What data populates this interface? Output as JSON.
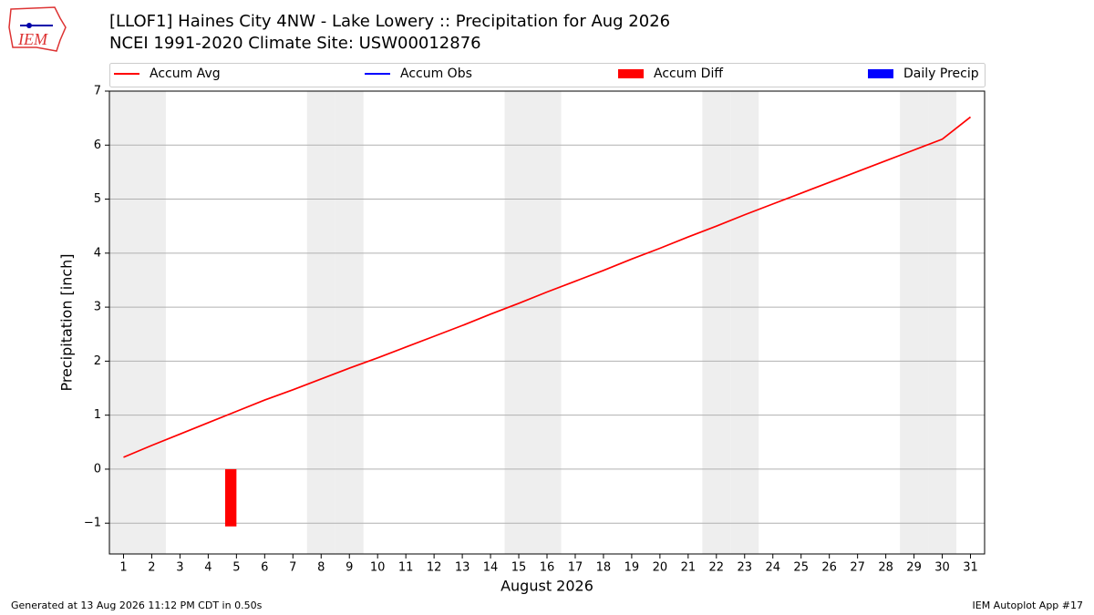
{
  "chart_data": {
    "type": "line",
    "title": "[LLOF1] Haines City 4NW - Lake Lowery :: Precipitation for Aug 2026",
    "subtitle": "NCEI 1991-2020 Climate Site: USW00012876",
    "logo_text": "IEM",
    "x_label": "August 2026",
    "y_label": "Precipitation [inch]",
    "footer_left": "Generated at 13 Aug 2026 11:12 PM CDT in 0.50s",
    "footer_right": "IEM Autoplot App #17",
    "x": [
      1,
      2,
      3,
      4,
      5,
      6,
      7,
      8,
      9,
      10,
      11,
      12,
      13,
      14,
      15,
      16,
      17,
      18,
      19,
      20,
      21,
      22,
      23,
      24,
      25,
      26,
      27,
      28,
      29,
      30,
      31
    ],
    "xlim": [
      0.5,
      31.5
    ],
    "xticks": [
      1,
      2,
      3,
      4,
      5,
      6,
      7,
      8,
      9,
      10,
      11,
      12,
      13,
      14,
      15,
      16,
      17,
      18,
      19,
      20,
      21,
      22,
      23,
      24,
      25,
      26,
      27,
      28,
      29,
      30,
      31
    ],
    "ylim": [
      -1.57,
      7
    ],
    "yticks": [
      {
        "value": -1,
        "label": "−1"
      },
      0,
      1,
      2,
      3,
      4,
      5,
      6,
      7
    ],
    "grid": true,
    "shaded_days": [
      1,
      2,
      8,
      9,
      15,
      16,
      22,
      23,
      29,
      30
    ],
    "series": [
      {
        "name": "Accum Avg",
        "kind": "line",
        "color": "#ff0000",
        "values": [
          0.22,
          0.44,
          0.65,
          0.86,
          1.07,
          1.28,
          1.47,
          1.67,
          1.87,
          2.06,
          2.26,
          2.46,
          2.66,
          2.87,
          3.07,
          3.28,
          3.48,
          3.68,
          3.89,
          4.09,
          4.3,
          4.5,
          4.71,
          4.91,
          5.11,
          5.31,
          5.51,
          5.71,
          5.91,
          6.11,
          6.52
        ]
      },
      {
        "name": "Accum Obs",
        "kind": "line",
        "color": "#0000ff",
        "values": [
          null,
          null,
          null,
          null,
          null,
          null,
          null,
          null,
          null,
          null,
          null,
          null,
          null,
          null,
          null,
          null,
          null,
          null,
          null,
          null,
          null,
          null,
          null,
          null,
          null,
          null,
          null,
          null,
          null,
          null,
          null
        ]
      },
      {
        "name": "Accum Diff",
        "kind": "bar",
        "color": "#ff0000",
        "values": [
          null,
          null,
          null,
          null,
          -1.06,
          null,
          null,
          null,
          null,
          null,
          null,
          null,
          null,
          null,
          null,
          null,
          null,
          null,
          null,
          null,
          null,
          null,
          null,
          null,
          null,
          null,
          null,
          null,
          null,
          null,
          null
        ]
      },
      {
        "name": "Daily Precip",
        "kind": "bar",
        "color": "#0000ff",
        "values": [
          null,
          null,
          null,
          null,
          null,
          null,
          null,
          null,
          null,
          null,
          null,
          null,
          null,
          null,
          null,
          null,
          null,
          null,
          null,
          null,
          null,
          null,
          null,
          null,
          null,
          null,
          null,
          null,
          null,
          null,
          null
        ]
      }
    ]
  }
}
